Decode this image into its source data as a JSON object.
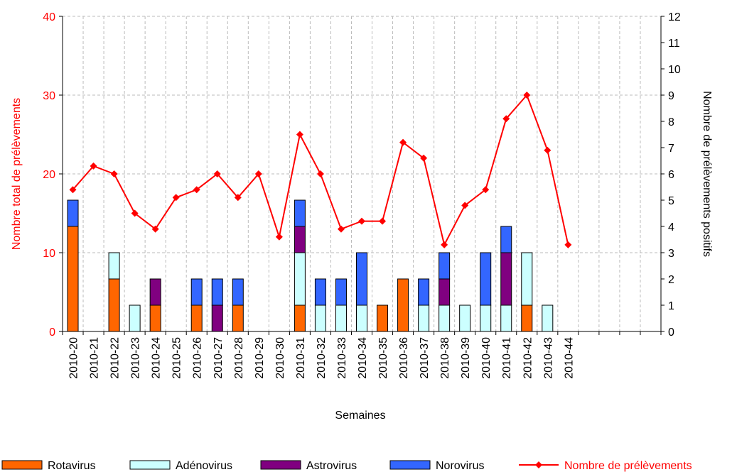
{
  "chart_data": {
    "type": "bar",
    "x_label": "Semaines",
    "y_label": "Nombre total de prélèvements",
    "y2_label": "Nombre de prélèvements positifs",
    "categories": [
      "2010-20",
      "2010-21",
      "2010-22",
      "2010-23",
      "2010-24",
      "2010-25",
      "2010-26",
      "2010-27",
      "2010-28",
      "2010-29",
      "2010-30",
      "2010-31",
      "2010-32",
      "2010-33",
      "2010-34",
      "2010-35",
      "2010-36",
      "2010-37",
      "2010-38",
      "2010-39",
      "2010-40",
      "2010-41",
      "2010-42",
      "2010-43",
      "2010-44",
      null,
      null,
      null,
      null
    ],
    "ylim": [
      0,
      40
    ],
    "yticks": [
      0,
      10,
      20,
      30,
      40
    ],
    "y2lim": [
      0,
      12
    ],
    "y2ticks": [
      0,
      1,
      2,
      3,
      4,
      5,
      6,
      7,
      8,
      9,
      10,
      11,
      12
    ],
    "grid": true,
    "stacked": true,
    "legend": "bottom",
    "series": [
      {
        "name": "Rotavirus",
        "type": "bar",
        "axis": "y2",
        "color": "#ff6600",
        "values": [
          4,
          0,
          2,
          0,
          1,
          0,
          1,
          0,
          1,
          0,
          0,
          1,
          0,
          0,
          0,
          1,
          2,
          0,
          0,
          0,
          0,
          0,
          1,
          0,
          0,
          null,
          null,
          null,
          null
        ]
      },
      {
        "name": "Adénovirus",
        "type": "bar",
        "axis": "y2",
        "color": "#ccffff",
        "values": [
          0,
          0,
          1,
          1,
          0,
          0,
          0,
          0,
          0,
          0,
          0,
          2,
          1,
          1,
          1,
          0,
          0,
          1,
          1,
          1,
          1,
          1,
          2,
          1,
          0,
          null,
          null,
          null,
          null
        ]
      },
      {
        "name": "Astrovirus",
        "type": "bar",
        "axis": "y2",
        "color": "#800080",
        "values": [
          0,
          0,
          0,
          0,
          1,
          0,
          0,
          1,
          0,
          0,
          0,
          1,
          0,
          0,
          0,
          0,
          0,
          0,
          1,
          0,
          0,
          2,
          0,
          0,
          0,
          null,
          null,
          null,
          null
        ]
      },
      {
        "name": "Norovirus",
        "type": "bar",
        "axis": "y2",
        "color": "#3366ff",
        "values": [
          1,
          0,
          0,
          0,
          0,
          0,
          1,
          1,
          1,
          0,
          0,
          1,
          1,
          1,
          2,
          0,
          0,
          1,
          1,
          0,
          2,
          1,
          0,
          0,
          0,
          null,
          null,
          null,
          null
        ]
      },
      {
        "name": "Nombre de prélèvements",
        "type": "line",
        "color": "#ff0000",
        "values": [
          18,
          21,
          20,
          15,
          13,
          17,
          18,
          20,
          17,
          20,
          12,
          25,
          20,
          13,
          14,
          14,
          24,
          22,
          11,
          16,
          18,
          27,
          30,
          23,
          11,
          null,
          null,
          null,
          null
        ]
      }
    ]
  }
}
